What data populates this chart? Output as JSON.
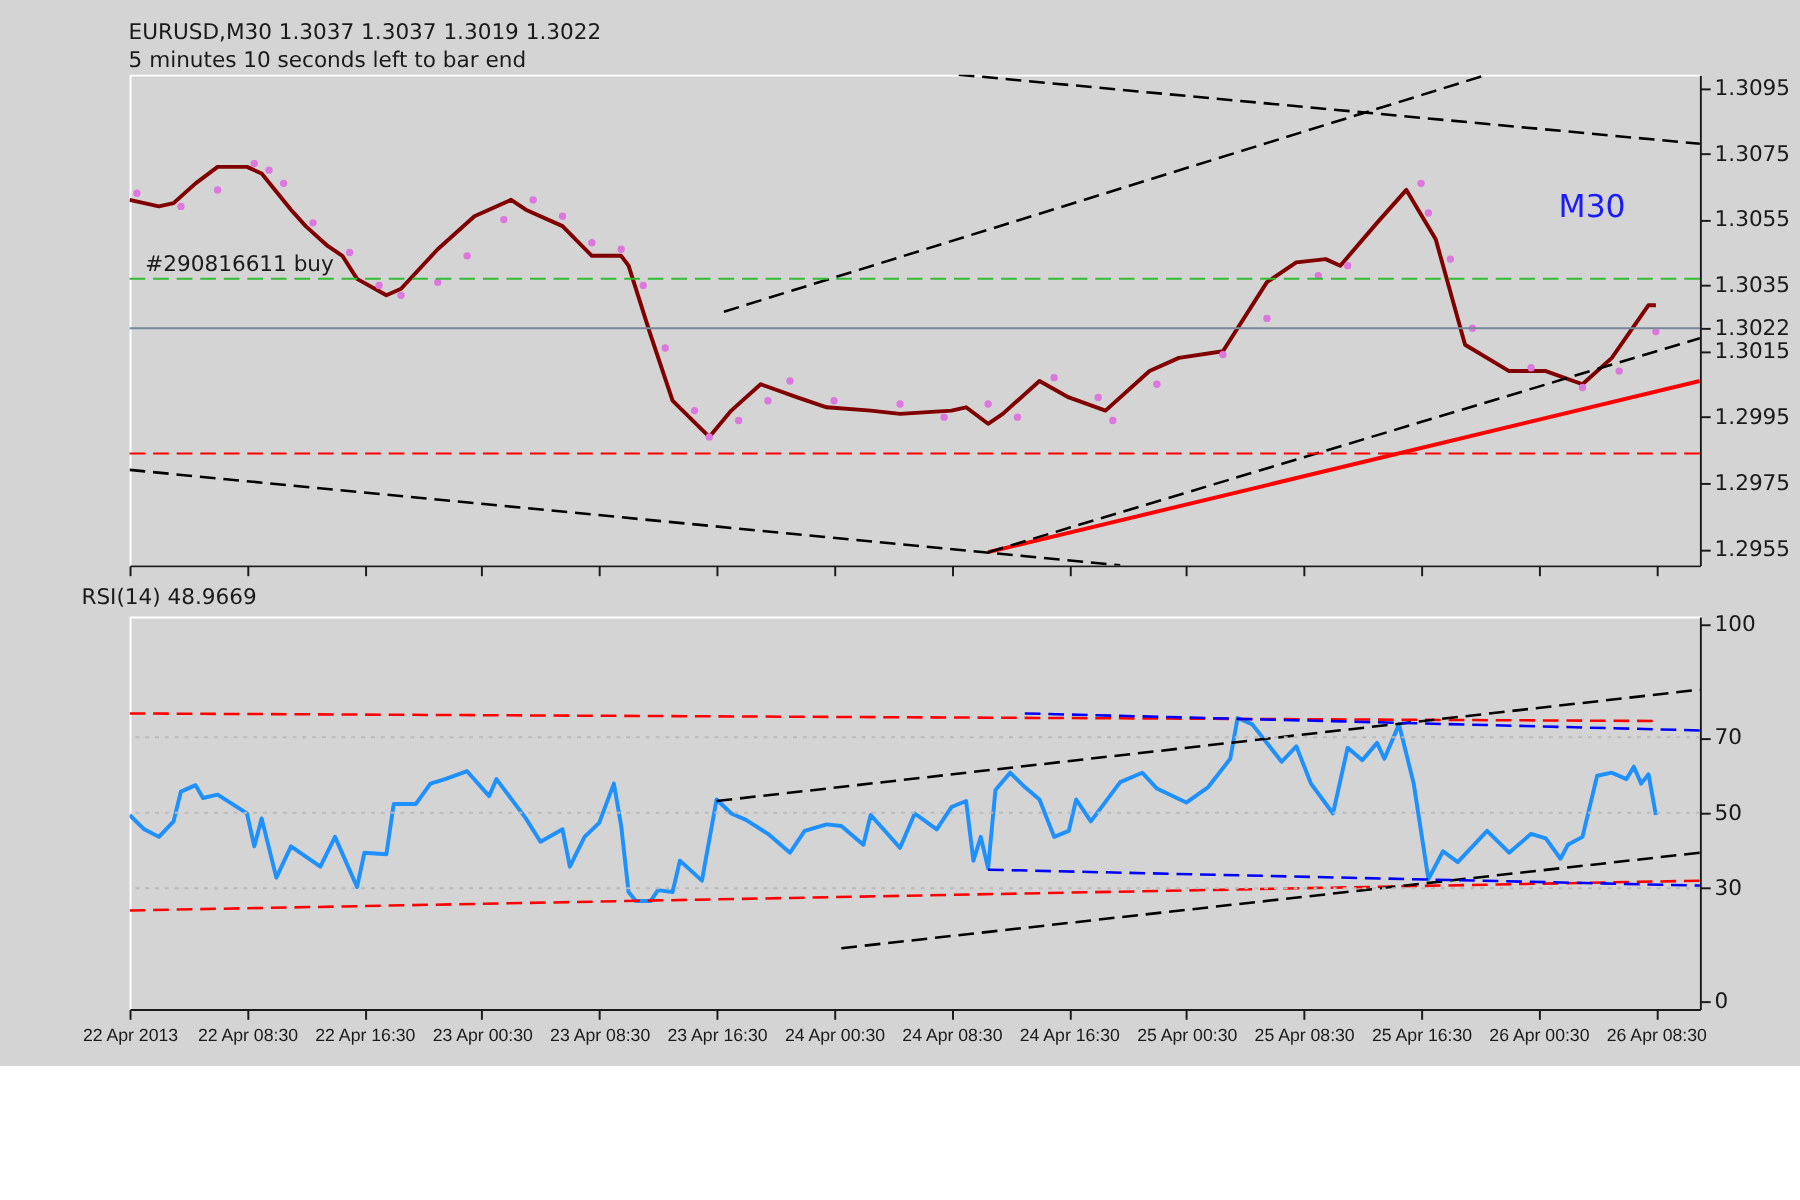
{
  "chart_data": [
    {
      "type": "line",
      "title": "EURUSD,M30  1.3037 1.3037 1.3019 1.3022",
      "subtitle": "5 minutes 10 seconds left to bar end",
      "annotations": [
        "M30"
      ],
      "xlim": [
        "2013-04-22T00:30",
        "2013-04-26T11:30"
      ],
      "xticks": [
        {
          "value": "2013-04-22T00:30",
          "label": null
        },
        {
          "value": "2013-04-22T08:30",
          "label": null
        },
        {
          "value": "2013-04-22T16:30",
          "label": null
        },
        {
          "value": "2013-04-23T00:30",
          "label": null
        },
        {
          "value": "2013-04-23T08:30",
          "label": null
        },
        {
          "value": "2013-04-23T16:30",
          "label": null
        },
        {
          "value": "2013-04-24T00:30",
          "label": null
        },
        {
          "value": "2013-04-24T08:30",
          "label": null
        },
        {
          "value": "2013-04-24T16:30",
          "label": null
        },
        {
          "value": "2013-04-25T00:30",
          "label": null
        },
        {
          "value": "2013-04-25T08:30",
          "label": null
        },
        {
          "value": "2013-04-25T16:30",
          "label": null
        },
        {
          "value": "2013-04-26T00:30",
          "label": null
        },
        {
          "value": "2013-04-26T08:30",
          "label": null
        }
      ],
      "ylim": [
        1.295,
        1.3099
      ],
      "yticks": [
        1.2955,
        1.2975,
        1.2995,
        1.3015,
        1.3022,
        1.3035,
        1.3055,
        1.3075,
        1.3095
      ],
      "tick_labels": "y",
      "grid": false,
      "ref_lines": [
        {
          "axis": "y",
          "value": 1.3037,
          "label": "#290816611 buy",
          "color": "#33bb33",
          "line_style": "dashed"
        },
        {
          "axis": "y",
          "value": 1.3022,
          "label": null,
          "color": "#778899",
          "line_style": "solid"
        },
        {
          "axis": "y",
          "value": 1.2984,
          "label": null,
          "color": "#ff0000",
          "line_style": "dashed"
        }
      ],
      "series": [
        {
          "type": "line",
          "color": "#800000",
          "line_style": "solid",
          "x": [
            "2013-04-22T00:30",
            "2013-04-22T02:30",
            "2013-04-22T03:30",
            "2013-04-22T05:00",
            "2013-04-22T06:30",
            "2013-04-22T08:30",
            "2013-04-22T09:30",
            "2013-04-22T11:30",
            "2013-04-22T12:30",
            "2013-04-22T14:00",
            "2013-04-22T15:00",
            "2013-04-22T16:00",
            "2013-04-22T18:00",
            "2013-04-22T19:00",
            "2013-04-22T21:30",
            "2013-04-23T00:00",
            "2013-04-23T02:30",
            "2013-04-23T03:30",
            "2013-04-23T06:00",
            "2013-04-23T08:00",
            "2013-04-23T10:00",
            "2013-04-23T10:30",
            "2013-04-23T12:00",
            "2013-04-23T13:30",
            "2013-04-23T16:00",
            "2013-04-23T17:30",
            "2013-04-23T19:30",
            "2013-04-23T22:00",
            "2013-04-24T00:00",
            "2013-04-24T03:00",
            "2013-04-24T05:00",
            "2013-04-24T08:30",
            "2013-04-24T09:30",
            "2013-04-24T11:00",
            "2013-04-24T12:00",
            "2013-04-24T14:30",
            "2013-04-24T16:30",
            "2013-04-24T19:00",
            "2013-04-24T22:00",
            "2013-04-25T00:00",
            "2013-04-25T03:00",
            "2013-04-25T06:00",
            "2013-04-25T08:00",
            "2013-04-25T10:00",
            "2013-04-25T11:00",
            "2013-04-25T13:30",
            "2013-04-25T15:30",
            "2013-04-25T17:30",
            "2013-04-25T19:30",
            "2013-04-25T22:30",
            "2013-04-26T01:00",
            "2013-04-26T03:30",
            "2013-04-26T05:30",
            "2013-04-26T08:00",
            "2013-04-26T08:30"
          ],
          "values": [
            1.3061,
            1.3059,
            1.306,
            1.3066,
            1.3071,
            1.3071,
            1.3069,
            1.3058,
            1.3053,
            1.3047,
            1.3044,
            1.3037,
            1.3032,
            1.3034,
            1.3046,
            1.3056,
            1.3061,
            1.3058,
            1.3053,
            1.3044,
            1.3044,
            1.3041,
            1.302,
            1.3,
            1.2989,
            1.2997,
            1.3005,
            1.3001,
            1.2998,
            1.2997,
            1.2996,
            1.2997,
            1.2998,
            1.2993,
            1.2996,
            1.3006,
            1.3001,
            1.2997,
            1.3009,
            1.3013,
            1.3015,
            1.3036,
            1.3042,
            1.3043,
            1.3041,
            1.3054,
            1.3064,
            1.3049,
            1.3017,
            1.3009,
            1.3009,
            1.3005,
            1.3013,
            1.3029,
            1.3029
          ]
        },
        {
          "type": "scatter",
          "color": "#dd77dd",
          "marker": "circle",
          "x": [
            "2013-04-22T01:00",
            "2013-04-22T04:00",
            "2013-04-22T06:30",
            "2013-04-22T09:00",
            "2013-04-22T10:00",
            "2013-04-22T11:00",
            "2013-04-22T13:00",
            "2013-04-22T15:30",
            "2013-04-22T17:30",
            "2013-04-22T19:00",
            "2013-04-22T21:30",
            "2013-04-22T23:30",
            "2013-04-23T02:00",
            "2013-04-23T04:00",
            "2013-04-23T06:00",
            "2013-04-23T08:00",
            "2013-04-23T10:00",
            "2013-04-23T11:30",
            "2013-04-23T13:00",
            "2013-04-23T15:00",
            "2013-04-23T16:00",
            "2013-04-23T18:00",
            "2013-04-23T20:00",
            "2013-04-23T21:30",
            "2013-04-24T00:30",
            "2013-04-24T05:00",
            "2013-04-24T08:00",
            "2013-04-24T11:00",
            "2013-04-24T13:00",
            "2013-04-24T15:30",
            "2013-04-24T18:30",
            "2013-04-24T19:30",
            "2013-04-24T22:30",
            "2013-04-25T03:00",
            "2013-04-25T06:00",
            "2013-04-25T09:30",
            "2013-04-25T11:30",
            "2013-04-25T16:30",
            "2013-04-25T17:00",
            "2013-04-25T18:30",
            "2013-04-25T20:00",
            "2013-04-26T00:00",
            "2013-04-26T03:30",
            "2013-04-26T06:00",
            "2013-04-26T08:30"
          ],
          "values": [
            1.3063,
            1.3059,
            1.3064,
            1.3072,
            1.307,
            1.3066,
            1.3054,
            1.3045,
            1.3035,
            1.3032,
            1.3036,
            1.3044,
            1.3055,
            1.3061,
            1.3056,
            1.3048,
            1.3046,
            1.3035,
            1.3016,
            1.2997,
            1.2989,
            1.2994,
            1.3,
            1.3006,
            1.3,
            1.2999,
            1.2995,
            1.2999,
            1.2995,
            1.3007,
            1.3001,
            1.2994,
            1.3005,
            1.3014,
            1.3025,
            1.3038,
            1.3041,
            1.3066,
            1.3057,
            1.3043,
            1.3022,
            1.301,
            1.3004,
            1.3009,
            1.3021
          ]
        },
        {
          "type": "line",
          "color": "#ff0000",
          "line_style": "solid",
          "x": [
            "2013-04-24T11:00",
            "2013-04-26T11:30"
          ],
          "values": [
            1.2954,
            1.3006
          ]
        },
        {
          "type": "line",
          "color": "#000000",
          "line_style": "dashed",
          "x": [
            "2013-04-23T17:00",
            "2013-04-25T21:00"
          ],
          "values": [
            1.3027,
            1.3099
          ]
        },
        {
          "type": "line",
          "color": "#000000",
          "line_style": "dashed",
          "x": [
            "2013-04-24T11:00",
            "2013-04-26T11:30"
          ],
          "values": [
            1.2954,
            1.3019
          ]
        },
        {
          "type": "line",
          "color": "#000000",
          "line_style": "dashed",
          "x": [
            "2013-04-24T09:00",
            "2013-04-26T11:30"
          ],
          "values": [
            1.3099,
            1.3078
          ]
        },
        {
          "type": "line",
          "color": "#000000",
          "line_style": "dashed",
          "x": [
            "2013-04-22T00:30",
            "2013-04-24T20:00"
          ],
          "values": [
            1.2979,
            1.295
          ]
        }
      ]
    },
    {
      "type": "line",
      "title": "RSI(14) 48.9669",
      "xlim": [
        "2013-04-22T00:30",
        "2013-04-26T11:30"
      ],
      "xticks": [
        {
          "value": "2013-04-22T00:30",
          "label": "22 Apr 2013"
        },
        {
          "value": "2013-04-22T08:30",
          "label": "22 Apr 08:30"
        },
        {
          "value": "2013-04-22T16:30",
          "label": "22 Apr 16:30"
        },
        {
          "value": "2013-04-23T00:30",
          "label": "23 Apr 00:30"
        },
        {
          "value": "2013-04-23T08:30",
          "label": "23 Apr 08:30"
        },
        {
          "value": "2013-04-23T16:30",
          "label": "23 Apr 16:30"
        },
        {
          "value": "2013-04-24T00:30",
          "label": "24 Apr 00:30"
        },
        {
          "value": "2013-04-24T08:30",
          "label": "24 Apr 08:30"
        },
        {
          "value": "2013-04-24T16:30",
          "label": "24 Apr 16:30"
        },
        {
          "value": "2013-04-25T00:30",
          "label": "25 Apr 00:30"
        },
        {
          "value": "2013-04-25T08:30",
          "label": "25 Apr 08:30"
        },
        {
          "value": "2013-04-25T16:30",
          "label": "25 Apr 16:30"
        },
        {
          "value": "2013-04-26T00:30",
          "label": "26 Apr 00:30"
        },
        {
          "value": "2013-04-26T08:30",
          "label": "26 Apr 08:30"
        }
      ],
      "ylim": [
        -2,
        102
      ],
      "yticks": [
        0,
        30,
        50,
        70,
        100
      ],
      "grid": false,
      "ref_lines": [
        {
          "axis": "y",
          "value": 30,
          "label": null,
          "color": "#bbbbbb",
          "line_style": "dotted"
        },
        {
          "axis": "y",
          "value": 50,
          "label": null,
          "color": "#bbbbbb",
          "line_style": "dotted"
        },
        {
          "axis": "y",
          "value": 70,
          "label": null,
          "color": "#bbbbbb",
          "line_style": "dotted"
        }
      ],
      "series": [
        {
          "type": "line",
          "color": "#1e90ff",
          "line_style": "solid",
          "x": [
            "2013-04-22T00:30",
            "2013-04-22T01:30",
            "2013-04-22T02:30",
            "2013-04-22T03:30",
            "2013-04-22T04:00",
            "2013-04-22T05:00",
            "2013-04-22T05:30",
            "2013-04-22T06:30",
            "2013-04-22T08:30",
            "2013-04-22T09:00",
            "2013-04-22T09:30",
            "2013-04-22T10:30",
            "2013-04-22T11:30",
            "2013-04-22T13:30",
            "2013-04-22T14:30",
            "2013-04-22T16:00",
            "2013-04-22T16:30",
            "2013-04-22T18:00",
            "2013-04-22T18:30",
            "2013-04-22T20:00",
            "2013-04-22T21:00",
            "2013-04-22T22:00",
            "2013-04-22T23:30",
            "2013-04-23T01:00",
            "2013-04-23T01:30",
            "2013-04-23T03:30",
            "2013-04-23T04:30",
            "2013-04-23T06:00",
            "2013-04-23T06:30",
            "2013-04-23T07:30",
            "2013-04-23T08:30",
            "2013-04-23T09:30",
            "2013-04-23T10:00",
            "2013-04-23T10:30",
            "2013-04-23T11:00",
            "2013-04-23T12:00",
            "2013-04-23T12:30",
            "2013-04-23T13:30",
            "2013-04-23T14:00",
            "2013-04-23T15:30",
            "2013-04-23T16:30",
            "2013-04-23T17:30",
            "2013-04-23T18:30",
            "2013-04-23T20:00",
            "2013-04-23T21:30",
            "2013-04-23T22:30",
            "2013-04-24T00:00",
            "2013-04-24T01:00",
            "2013-04-24T02:30",
            "2013-04-24T03:00",
            "2013-04-24T05:00",
            "2013-04-24T06:00",
            "2013-04-24T07:30",
            "2013-04-24T08:30",
            "2013-04-24T09:30",
            "2013-04-24T10:00",
            "2013-04-24T10:30",
            "2013-04-24T11:00",
            "2013-04-24T11:30",
            "2013-04-24T12:30",
            "2013-04-24T13:30",
            "2013-04-24T14:30",
            "2013-04-24T15:30",
            "2013-04-24T16:30",
            "2013-04-24T17:00",
            "2013-04-24T18:00",
            "2013-04-24T20:00",
            "2013-04-24T21:30",
            "2013-04-24T22:30",
            "2013-04-25T00:30",
            "2013-04-25T02:00",
            "2013-04-25T03:30",
            "2013-04-25T04:00",
            "2013-04-25T05:00",
            "2013-04-25T07:00",
            "2013-04-25T08:00",
            "2013-04-25T09:00",
            "2013-04-25T10:30",
            "2013-04-25T11:30",
            "2013-04-25T12:30",
            "2013-04-25T13:30",
            "2013-04-25T14:00",
            "2013-04-25T15:00",
            "2013-04-25T16:00",
            "2013-04-25T17:00",
            "2013-04-25T18:00",
            "2013-04-25T19:00",
            "2013-04-25T21:00",
            "2013-04-25T22:30",
            "2013-04-26T00:00",
            "2013-04-26T01:00",
            "2013-04-26T02:00",
            "2013-04-26T02:30",
            "2013-04-26T03:30",
            "2013-04-26T04:30",
            "2013-04-26T05:30",
            "2013-04-26T06:30",
            "2013-04-26T07:00",
            "2013-04-26T07:30",
            "2013-04-26T08:00",
            "2013-04-26T08:30"
          ],
          "values": [
            49.4,
            45.6,
            43.6,
            47.7,
            55.6,
            57.3,
            53.9,
            54.8,
            49.8,
            41.1,
            48.5,
            32.8,
            41.1,
            35.7,
            43.6,
            30.3,
            39.4,
            39,
            52.3,
            52.3,
            57.7,
            58.9,
            61,
            54.4,
            58.9,
            48.5,
            42.3,
            45.6,
            35.7,
            43.6,
            47.3,
            57.7,
            46.5,
            29,
            26.6,
            26.6,
            29.5,
            29,
            37.3,
            32,
            53.5,
            49.8,
            48.1,
            44.4,
            39.4,
            45.2,
            46.9,
            46.5,
            41.5,
            49.4,
            40.7,
            49.8,
            45.6,
            51.5,
            53.1,
            37.3,
            43.6,
            35.3,
            56,
            60.6,
            56.8,
            53.5,
            43.6,
            45.2,
            53.5,
            47.7,
            58.1,
            60.6,
            56.4,
            52.7,
            56.8,
            64.3,
            75.1,
            73.4,
            63.5,
            67.6,
            57.7,
            49.8,
            67.2,
            63.9,
            68.5,
            64.3,
            73.4,
            57.7,
            32.4,
            39.8,
            36.9,
            45.2,
            39.4,
            44.4,
            43.2,
            37.8,
            41.5,
            43.6,
            59.8,
            60.6,
            58.9,
            62.2,
            57.7,
            60.2,
            49.4
          ]
        },
        {
          "type": "line",
          "color": "#ff0000",
          "line_style": "dashed",
          "x": [
            "2013-04-22T00:30",
            "2013-04-26T08:30"
          ],
          "values": [
            76.3,
            74.3
          ]
        },
        {
          "type": "line",
          "color": "#ff0000",
          "line_style": "dashed",
          "x": [
            "2013-04-22T00:30",
            "2013-04-26T11:30"
          ],
          "values": [
            24.1,
            32
          ]
        },
        {
          "type": "line",
          "color": "#000000",
          "line_style": "dashed",
          "x": [
            "2013-04-23T16:30",
            "2013-04-26T11:30"
          ],
          "values": [
            53.1,
            82.6
          ]
        },
        {
          "type": "line",
          "color": "#000000",
          "line_style": "dashed",
          "x": [
            "2013-04-24T01:00",
            "2013-04-26T11:30"
          ],
          "values": [
            14.1,
            39.4
          ]
        },
        {
          "type": "line",
          "color": "#0000ff",
          "line_style": "dashed",
          "x": [
            "2013-04-24T13:30",
            "2013-04-26T11:30"
          ],
          "values": [
            76.3,
            71.8
          ]
        },
        {
          "type": "line",
          "color": "#0000ff",
          "line_style": "dashed",
          "x": [
            "2013-04-24T11:00",
            "2013-04-26T11:30"
          ],
          "values": [
            34.9,
            30.7
          ]
        }
      ]
    }
  ]
}
